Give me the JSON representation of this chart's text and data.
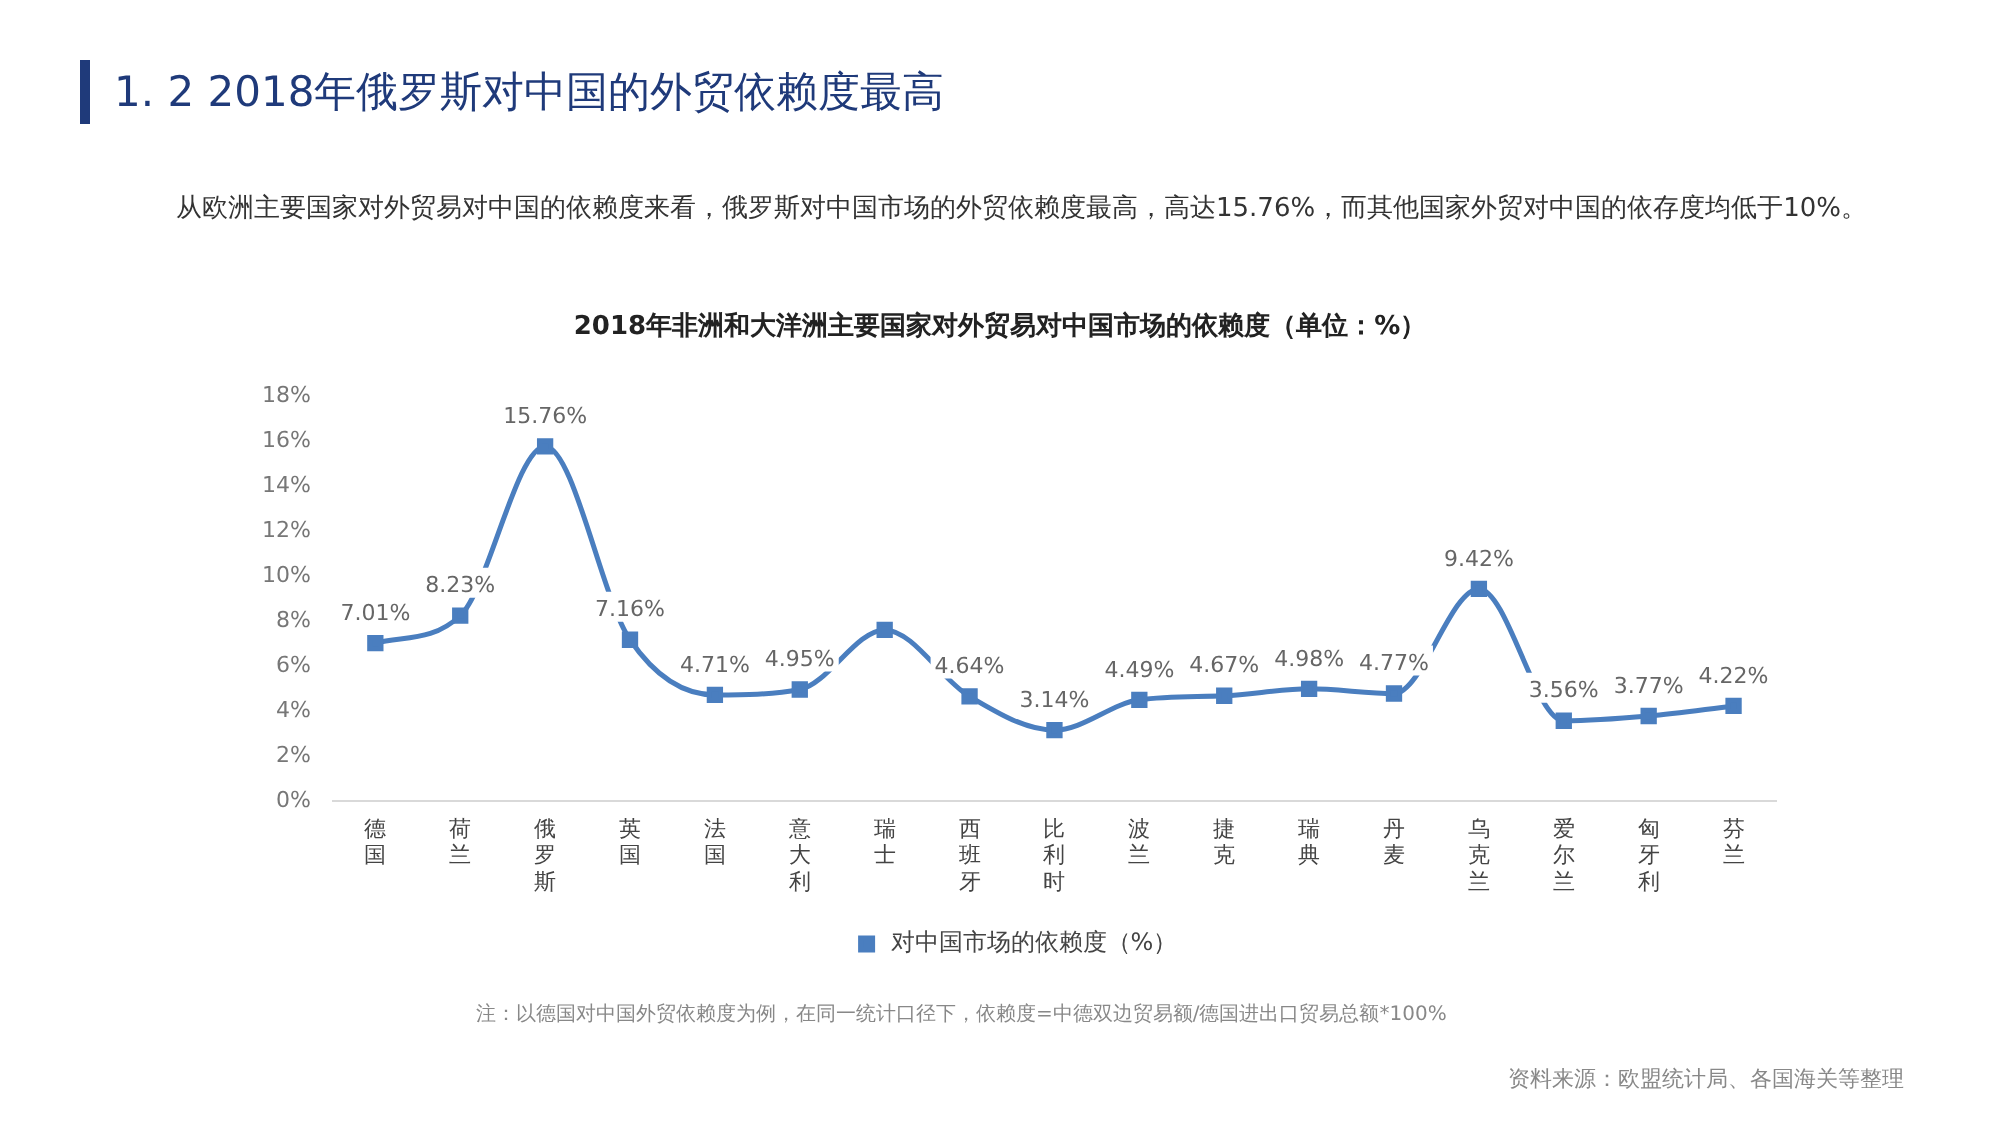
{
  "chart_data": {
    "type": "line",
    "title": "1. 2  2018年俄罗斯对中国的外贸依赖度最高",
    "subtitle": "2018年非洲和大洋洲主要国家对外贸易对中国市场的依赖度（单位：%）",
    "categories": [
      "德国",
      "荷兰",
      "俄罗斯",
      "英国",
      "法国",
      "意大利",
      "瑞士",
      "西班牙",
      "比利时",
      "波兰",
      "捷克",
      "瑞典",
      "丹麦",
      "乌克兰",
      "爱尔兰",
      "匈牙利",
      "芬兰"
    ],
    "series": [
      {
        "name": "对中国市场的依赖度（%）",
        "color": "#4a7ebf",
        "values": [
          7.01,
          8.23,
          15.76,
          7.16,
          4.71,
          4.95,
          7.6,
          4.64,
          3.14,
          4.49,
          4.67,
          4.98,
          4.77,
          9.42,
          3.56,
          3.77,
          4.22
        ],
        "value_labels": [
          "7.01%",
          "8.23%",
          "15.76%",
          "7.16%",
          "4.71%",
          "4.95%",
          null,
          "4.64%",
          "3.14%",
          "4.49%",
          "4.67%",
          "4.98%",
          "4.77%",
          "9.42%",
          "3.56%",
          "3.77%",
          "4.22%"
        ]
      }
    ],
    "ylim": [
      0,
      18
    ],
    "yticks": [
      {
        "value": 0,
        "label": "0%"
      },
      {
        "value": 2,
        "label": "2%"
      },
      {
        "value": 4,
        "label": "4%"
      },
      {
        "value": 6,
        "label": "6%"
      },
      {
        "value": 8,
        "label": "8%"
      },
      {
        "value": 10,
        "label": "10%"
      },
      {
        "value": 12,
        "label": "12%"
      },
      {
        "value": 14,
        "label": "14%"
      },
      {
        "value": 16,
        "label": "16%"
      },
      {
        "value": 18,
        "label": "18%"
      }
    ],
    "grid": false,
    "legend": "bottom",
    "marker": "square",
    "line_style": "solid",
    "annotations": [
      "从欧洲主要国家对外贸易对中国的依赖度来看，俄罗斯对中国市场的外贸依赖度最高，高达15.76%，而其他国家外贸对中国的依存度均低于10%。",
      "注：以德国对中国外贸依赖度为例，在同一统计口径下，依赖度=中德双边贸易额/德国进出口贸易总额*100%",
      "资料来源：欧盟统计局、各国海关等整理"
    ]
  }
}
